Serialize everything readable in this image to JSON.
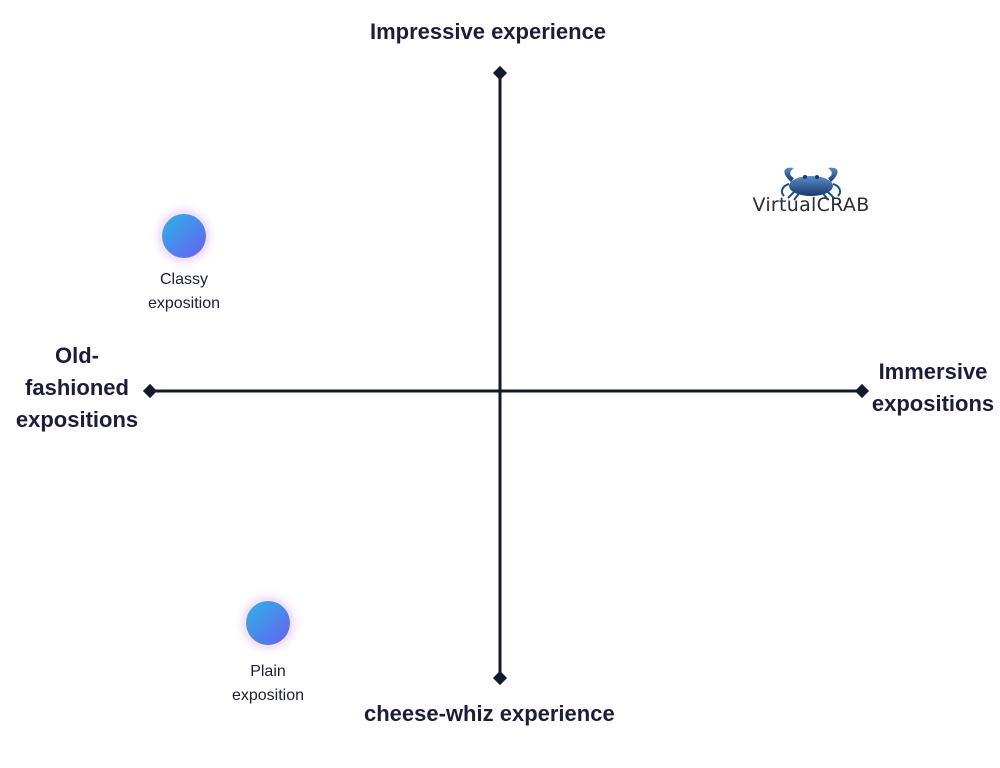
{
  "axes": {
    "top": "Impressive experience",
    "bottom": "cheese-whiz  experience",
    "left": [
      "Old-",
      "fashioned",
      "expositions"
    ],
    "right": [
      "Immersive",
      "expositions"
    ]
  },
  "points": [
    {
      "label": [
        "Classy",
        "exposition"
      ]
    },
    {
      "label": [
        "Plain",
        "exposition"
      ]
    }
  ],
  "brand": {
    "name": "VirtualCRAB",
    "icon": "crab-logo"
  },
  "colors": {
    "axis": "#131a2e",
    "text": "#1c1d3a",
    "point_gradient_start": "#29b6e8",
    "point_gradient_end": "#6a5cf0",
    "brand_blue": "#1f4f8a"
  }
}
